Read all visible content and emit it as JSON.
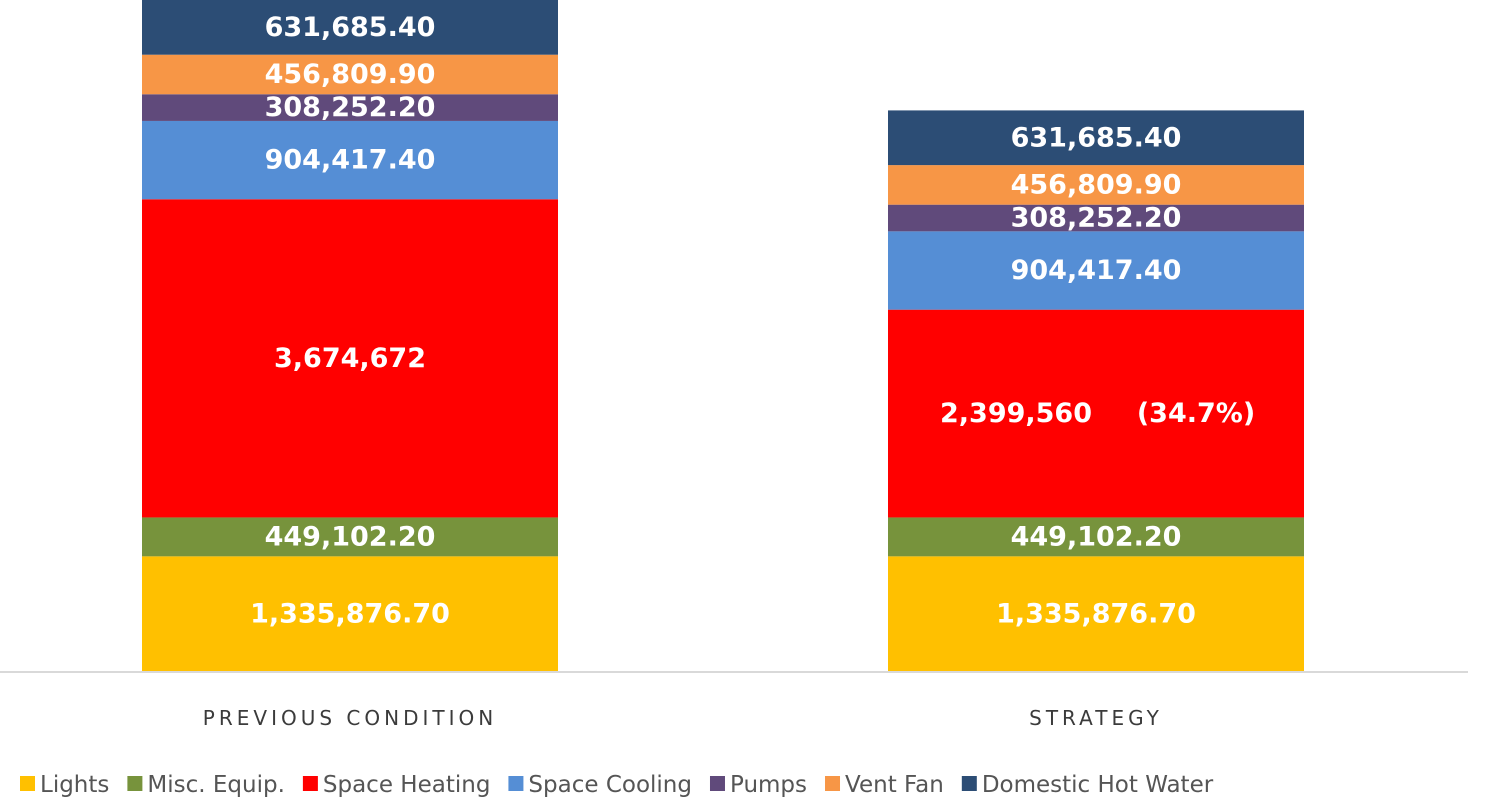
{
  "chart_data": {
    "type": "bar",
    "stacked": true,
    "title": "",
    "xlabel": "",
    "ylabel": "",
    "ylim": [
      0,
      7760816
    ],
    "grid": false,
    "legend_position": "bottom",
    "categories": [
      "PREVIOUS CONDITION",
      "STRATEGY"
    ],
    "series": [
      {
        "name": "Lights",
        "color": "#FFC000",
        "values": [
          1335876.7,
          1335876.7
        ],
        "labels": [
          "1,335,876.70",
          "1,335,876.70"
        ]
      },
      {
        "name": "Misc. Equip.",
        "color": "#77933C",
        "values": [
          449102.2,
          449102.2
        ],
        "labels": [
          "449,102.20",
          "449,102.20"
        ]
      },
      {
        "name": "Space Heating",
        "color": "#FF0000",
        "values": [
          3674672,
          2399560
        ],
        "labels": [
          "3,674,672",
          "2,399,560"
        ],
        "annotation": [
          "",
          "(34.7%)"
        ]
      },
      {
        "name": "Space Cooling",
        "color": "#558ED5",
        "values": [
          904417.4,
          904417.4
        ],
        "labels": [
          "904,417.40",
          "904,417.40"
        ]
      },
      {
        "name": "Pumps",
        "color": "#604A7B",
        "values": [
          308252.2,
          308252.2
        ],
        "labels": [
          "308,252.20",
          "308,252.20"
        ]
      },
      {
        "name": "Vent Fan",
        "color": "#F79646",
        "values": [
          456809.9,
          456809.9
        ],
        "labels": [
          "456,809.90",
          "456,809.90"
        ]
      },
      {
        "name": "Domestic Hot Water",
        "color": "#2C4D75",
        "values": [
          631685.4,
          631685.4
        ],
        "labels": [
          "631,685.40",
          "631,685.40"
        ]
      }
    ]
  }
}
